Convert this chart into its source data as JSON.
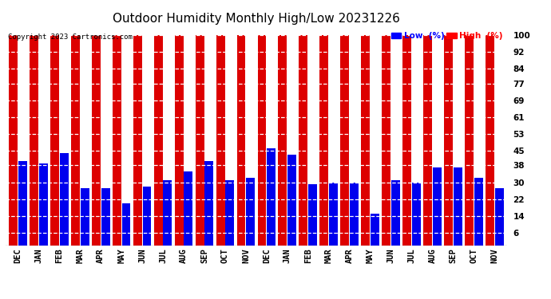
{
  "title": "Outdoor Humidity Monthly High/Low 20231226",
  "copyright": "Copyright 2023 Cartronics.com",
  "legend_low_label": "Low  (%)",
  "legend_high_label": "High  (%)",
  "legend_low_color": "#0000FF",
  "legend_high_color": "#FF0000",
  "bar_color_high": "#DD0000",
  "bar_color_low": "#0000EE",
  "categories": [
    "DEC",
    "JAN",
    "FEB",
    "MAR",
    "APR",
    "MAY",
    "JUN",
    "JUL",
    "AUG",
    "SEP",
    "OCT",
    "NOV",
    "DEC",
    "JAN",
    "FEB",
    "MAR",
    "APR",
    "MAY",
    "JUN",
    "JUL",
    "AUG",
    "SEP",
    "OCT",
    "NOV"
  ],
  "high_values": [
    100,
    100,
    100,
    100,
    100,
    100,
    100,
    100,
    100,
    100,
    100,
    100,
    100,
    100,
    100,
    100,
    100,
    100,
    100,
    100,
    100,
    100,
    100,
    100
  ],
  "low_values": [
    40,
    39,
    44,
    27,
    27,
    20,
    28,
    31,
    35,
    40,
    31,
    32,
    46,
    43,
    29,
    30,
    30,
    15,
    31,
    30,
    37,
    37,
    32,
    27
  ],
  "yticks": [
    6,
    14,
    22,
    30,
    38,
    45,
    53,
    61,
    69,
    77,
    84,
    92,
    100
  ],
  "ylim": [
    0,
    104
  ],
  "background_color": "#FFFFFF",
  "title_fontsize": 11,
  "tick_fontsize": 7.5,
  "bar_width": 0.42,
  "bar_gap": 0.03
}
